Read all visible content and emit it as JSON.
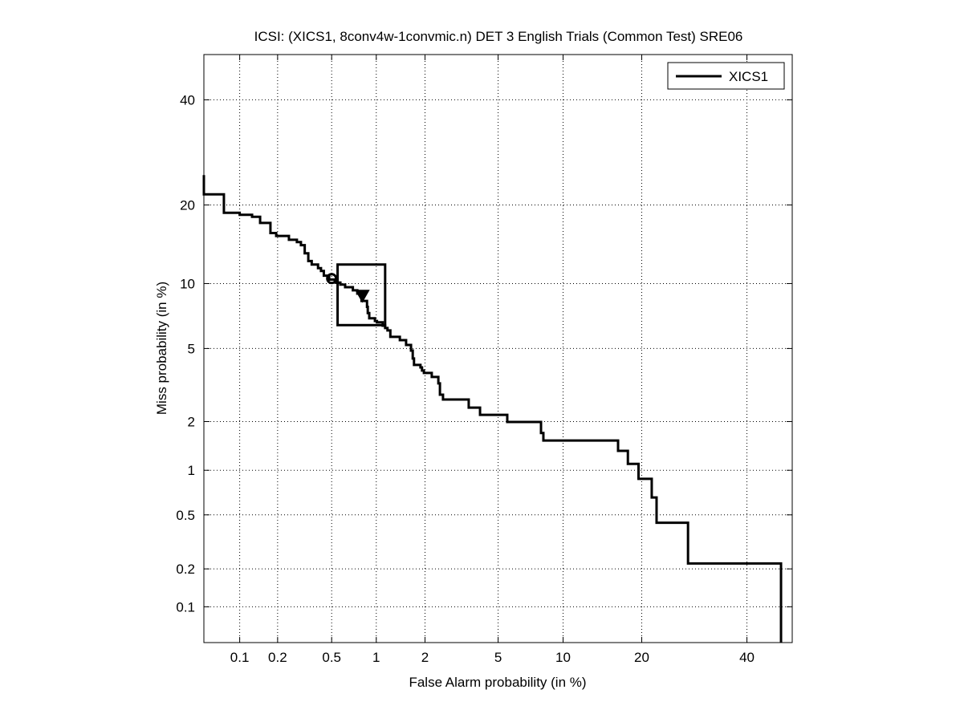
{
  "chart_data": {
    "type": "line",
    "title": "ICSI: (XICS1, 8conv4w-1convmic.n) DET 3 English Trials (Common Test) SRE06",
    "xlabel": "False Alarm probability (in %)",
    "ylabel": "Miss probability (in %)",
    "xlim": [
      0.05,
      50
    ],
    "ylim": [
      0.05,
      50
    ],
    "xticks": [
      0.1,
      0.2,
      0.5,
      1,
      2,
      5,
      10,
      20,
      40
    ],
    "yticks": [
      0.1,
      0.2,
      0.5,
      1,
      2,
      5,
      10,
      20,
      40
    ],
    "grid": true,
    "legend_position": "top-right",
    "series": [
      {
        "name": "XICS1",
        "color": "#000000",
        "x": [
          0.05,
          0.05,
          0.074,
          0.074,
          0.1,
          0.1,
          0.126,
          0.126,
          0.146,
          0.146,
          0.176,
          0.176,
          0.195,
          0.195,
          0.244,
          0.244,
          0.28,
          0.28,
          0.3,
          0.3,
          0.32,
          0.32,
          0.34,
          0.34,
          0.36,
          0.36,
          0.4,
          0.4,
          0.42,
          0.42,
          0.44,
          0.44,
          0.48,
          0.48,
          0.53,
          0.53,
          0.575,
          0.575,
          0.62,
          0.62,
          0.7,
          0.7,
          0.75,
          0.75,
          0.8,
          0.8,
          0.87,
          0.87,
          0.88,
          0.88,
          0.9,
          0.9,
          0.98,
          0.98,
          1.01,
          1.01,
          1.1,
          1.1,
          1.14,
          1.14,
          1.18,
          1.18,
          1.23,
          1.23,
          1.41,
          1.41,
          1.54,
          1.54,
          1.65,
          1.65,
          1.69,
          1.69,
          1.72,
          1.72,
          1.88,
          1.88,
          1.92,
          1.92,
          1.97,
          1.97,
          2.19,
          2.19,
          2.39,
          2.39,
          2.44,
          2.44,
          2.54,
          2.54,
          3.52,
          3.52,
          4.04,
          4.04,
          5.55,
          5.55,
          8.0,
          8.0,
          8.2,
          8.2,
          16.5,
          16.5,
          17.9,
          17.9,
          19.5,
          19.5,
          21.6,
          21.6,
          22.4,
          22.4,
          28.0,
          28.0,
          47.5,
          47.5
        ],
        "y": [
          25.0,
          21.7,
          21.7,
          18.8,
          18.8,
          18.5,
          18.5,
          18.2,
          18.2,
          17.3,
          17.3,
          15.9,
          15.9,
          15.5,
          15.5,
          15.0,
          15.0,
          14.7,
          14.7,
          14.3,
          14.3,
          13.3,
          13.3,
          12.4,
          12.4,
          12.0,
          12.0,
          11.6,
          11.6,
          11.3,
          11.3,
          10.8,
          10.8,
          10.4,
          10.4,
          10.1,
          10.1,
          9.9,
          9.9,
          9.65,
          9.65,
          9.35,
          9.35,
          9.05,
          9.05,
          8.4,
          8.4,
          7.9,
          7.9,
          7.4,
          7.4,
          7.0,
          7.0,
          6.8,
          6.8,
          6.7,
          6.7,
          6.46,
          6.46,
          6.3,
          6.3,
          6.13,
          6.13,
          5.71,
          5.71,
          5.5,
          5.5,
          5.21,
          5.21,
          4.88,
          4.88,
          4.45,
          4.45,
          4.12,
          4.12,
          4.0,
          4.0,
          3.85,
          3.85,
          3.74,
          3.74,
          3.56,
          3.56,
          3.29,
          3.29,
          2.85,
          2.85,
          2.68,
          2.68,
          2.41,
          2.41,
          2.19,
          2.19,
          1.99,
          1.99,
          1.71,
          1.71,
          1.54,
          1.54,
          1.33,
          1.33,
          1.1,
          1.1,
          0.88,
          0.88,
          0.66,
          0.66,
          0.44,
          0.44,
          0.22,
          0.22,
          0.05
        ]
      }
    ],
    "circle_marker": {
      "x": 0.5,
      "y": 10.5
    },
    "triangle_marker": {
      "x": 0.81,
      "y": 8.9
    },
    "confidence_box": {
      "x": [
        0.55,
        1.14
      ],
      "y": [
        6.5,
        12.0
      ]
    }
  }
}
